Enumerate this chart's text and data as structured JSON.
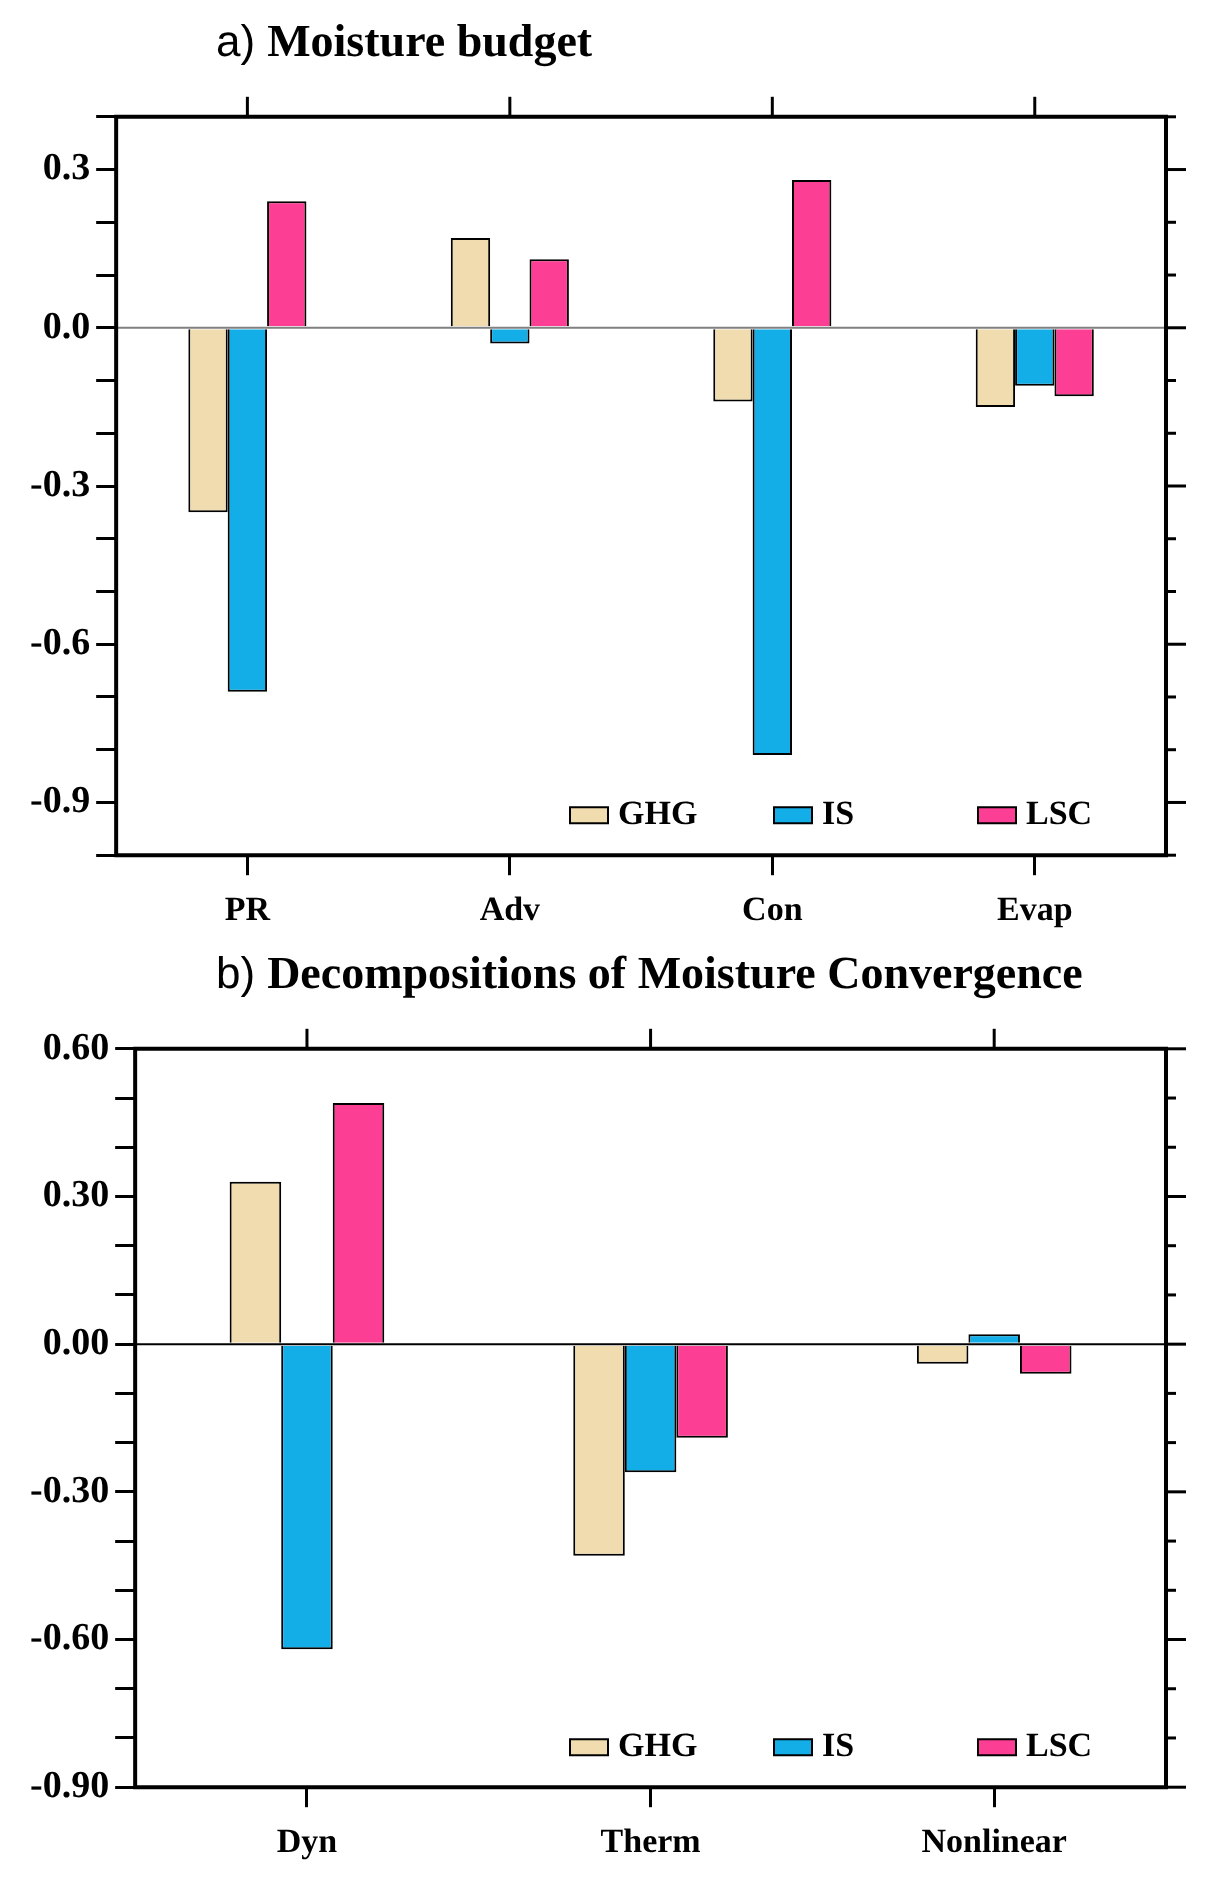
{
  "chart_data": [
    {
      "type": "bar",
      "title": "Moisture budget",
      "subtitle": "a)",
      "categories": [
        "PR",
        "Adv",
        "Con",
        "Evap"
      ],
      "series": [
        {
          "name": "GHG",
          "color": "#f0dcae",
          "values": [
            -0.35,
            0.17,
            -0.14,
            -0.15
          ]
        },
        {
          "name": "IS",
          "color": "#13aee8",
          "values": [
            -0.69,
            -0.03,
            -0.81,
            -0.11
          ]
        },
        {
          "name": "LSC",
          "color": "#fc3e94",
          "values": [
            0.24,
            0.13,
            0.28,
            -0.13
          ]
        }
      ],
      "ylim": [
        -1.0,
        0.4
      ],
      "yticks": [
        {
          "value": -1.0,
          "label": null
        },
        -0.9,
        {
          "value": -0.8,
          "label": null
        },
        {
          "value": -0.7,
          "label": null
        },
        -0.6,
        {
          "value": -0.5,
          "label": null
        },
        {
          "value": -0.4,
          "label": null
        },
        -0.3,
        {
          "value": -0.2,
          "label": null
        },
        {
          "value": -0.1,
          "label": null
        },
        {
          "value": 0,
          "label": "0.0"
        },
        {
          "value": 0.1,
          "label": null
        },
        {
          "value": 0.2,
          "label": null
        },
        0.3,
        {
          "value": 0.4,
          "label": null
        }
      ],
      "ref_lines": [
        {
          "axis": "y",
          "value": 0,
          "color": "#808080"
        }
      ],
      "grid": false,
      "legend": "bottom right"
    },
    {
      "type": "bar",
      "title": "Decompositions of Moisture Convergence",
      "subtitle": "b)",
      "categories": [
        "Dyn",
        "Therm",
        "Nonlinear"
      ],
      "series": [
        {
          "name": "GHG",
          "color": "#f0dcae",
          "values": [
            0.33,
            -0.43,
            -0.04
          ]
        },
        {
          "name": "IS",
          "color": "#13aee8",
          "values": [
            -0.62,
            -0.26,
            0.02
          ]
        },
        {
          "name": "LSC",
          "color": "#fc3e94",
          "values": [
            0.49,
            -0.19,
            -0.06
          ]
        }
      ],
      "ylim": [
        -0.9,
        0.6
      ],
      "yticks": [
        {
          "value": -0.9,
          "label": "-0.90"
        },
        {
          "value": -0.8,
          "label": null
        },
        {
          "value": -0.7,
          "label": null
        },
        {
          "value": -0.6,
          "label": "-0.60"
        },
        {
          "value": -0.5,
          "label": null
        },
        {
          "value": -0.4,
          "label": null
        },
        {
          "value": -0.3,
          "label": "-0.30"
        },
        {
          "value": -0.2,
          "label": null
        },
        {
          "value": -0.1,
          "label": null
        },
        {
          "value": 0,
          "label": "0.00"
        },
        {
          "value": 0.1,
          "label": null
        },
        {
          "value": 0.2,
          "label": null
        },
        {
          "value": 0.3,
          "label": "0.30"
        },
        {
          "value": 0.4,
          "label": null
        },
        {
          "value": 0.5,
          "label": null
        },
        {
          "value": 0.6,
          "label": "0.60"
        }
      ],
      "ref_lines": [
        {
          "axis": "y",
          "value": 0,
          "color": "#000000"
        }
      ],
      "grid": false,
      "legend": "bottom right"
    }
  ]
}
